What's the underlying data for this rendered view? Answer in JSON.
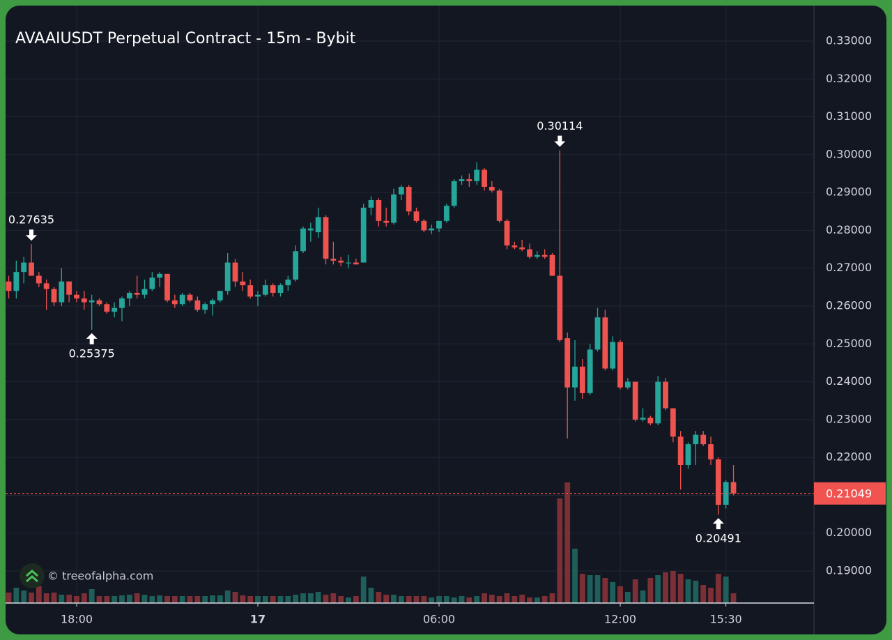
{
  "chart_data": {
    "type": "candlestick",
    "title": "AVAAIUSDT Perpetual Contract - 15m - Bybit",
    "watermark": "© treeofalpha.com",
    "x": [
      -8.25,
      -8,
      -7.75,
      -7.5,
      -7.25,
      -7,
      -6.75,
      -6.5,
      -6.25,
      -6,
      -5.75,
      -5.5,
      -5.25,
      -5,
      -4.75,
      -4.5,
      -4.25,
      -4,
      -3.75,
      -3.5,
      -3.25,
      -3,
      -2.75,
      -2.5,
      -2.25,
      -2,
      -1.75,
      -1.5,
      -1.25,
      -1,
      -0.75,
      -0.5,
      -0.25,
      0,
      0.25,
      0.5,
      0.75,
      1,
      1.25,
      1.5,
      1.75,
      2,
      2.25,
      2.5,
      2.75,
      3,
      3.25,
      3.5,
      3.75,
      4,
      4.25,
      4.5,
      4.75,
      5,
      5.25,
      5.5,
      5.75,
      6,
      6.25,
      6.5,
      6.75,
      7,
      7.25,
      7.5,
      7.75,
      8,
      8.25,
      8.5,
      8.75,
      9,
      9.25,
      9.5,
      9.75,
      10,
      10.25,
      10.5,
      10.75,
      11,
      11.25,
      11.5,
      11.75,
      12,
      12.25,
      12.5,
      12.75,
      13,
      13.25,
      13.5,
      13.75,
      14,
      14.25,
      14.5,
      14.75,
      15,
      15.25,
      15.5,
      15.75
    ],
    "open": [
      0.2665,
      0.264,
      0.269,
      0.2715,
      0.268,
      0.266,
      0.2645,
      0.261,
      0.2665,
      0.263,
      0.262,
      0.261,
      0.2615,
      0.2605,
      0.2585,
      0.2595,
      0.262,
      0.2635,
      0.263,
      0.2645,
      0.2675,
      0.2685,
      0.2615,
      0.2605,
      0.263,
      0.2615,
      0.259,
      0.2605,
      0.2615,
      0.264,
      0.2715,
      0.2665,
      0.2655,
      0.2625,
      0.263,
      0.2655,
      0.2635,
      0.2655,
      0.267,
      0.2745,
      0.28,
      0.2795,
      0.2835,
      0.2725,
      0.272,
      0.2715,
      0.2715,
      0.2715,
      0.286,
      0.288,
      0.2825,
      0.282,
      0.2895,
      0.2915,
      0.285,
      0.2825,
      0.28,
      0.2805,
      0.2825,
      0.2865,
      0.293,
      0.2935,
      0.293,
      0.296,
      0.2915,
      0.2905,
      0.2825,
      0.276,
      0.2755,
      0.275,
      0.273,
      0.2735,
      0.2735,
      0.268,
      0.2515,
      0.2385,
      0.244,
      0.237,
      0.2485,
      0.257,
      0.2435,
      0.2505,
      0.2385,
      0.24,
      0.23,
      0.2305,
      0.229,
      0.24,
      0.233,
      0.2255,
      0.218,
      0.2235,
      0.226,
      0.2235,
      0.2195,
      0.2075,
      0.2135
    ],
    "high": [
      0.268,
      0.272,
      0.273,
      0.27635,
      0.269,
      0.267,
      0.265,
      0.27,
      0.2665,
      0.264,
      0.264,
      0.263,
      0.262,
      0.261,
      0.261,
      0.2625,
      0.264,
      0.268,
      0.267,
      0.269,
      0.269,
      0.2685,
      0.263,
      0.2635,
      0.2635,
      0.2625,
      0.261,
      0.262,
      0.264,
      0.274,
      0.2725,
      0.269,
      0.267,
      0.264,
      0.267,
      0.266,
      0.266,
      0.268,
      0.276,
      0.281,
      0.282,
      0.286,
      0.284,
      0.277,
      0.273,
      0.2735,
      0.2725,
      0.287,
      0.289,
      0.2885,
      0.286,
      0.291,
      0.292,
      0.292,
      0.286,
      0.283,
      0.2815,
      0.2825,
      0.287,
      0.2935,
      0.2945,
      0.295,
      0.298,
      0.2965,
      0.293,
      0.291,
      0.283,
      0.277,
      0.2775,
      0.2765,
      0.2745,
      0.275,
      0.274,
      0.30114,
      0.253,
      0.251,
      0.246,
      0.25,
      0.2595,
      0.259,
      0.252,
      0.251,
      0.241,
      0.24,
      0.233,
      0.231,
      0.2415,
      0.241,
      0.233,
      0.227,
      0.224,
      0.227,
      0.227,
      0.2255,
      0.22,
      0.214,
      0.218
    ],
    "low": [
      0.262,
      0.262,
      0.266,
      0.268,
      0.265,
      0.259,
      0.26,
      0.26,
      0.261,
      0.261,
      0.259,
      0.25375,
      0.26,
      0.258,
      0.257,
      0.256,
      0.26,
      0.262,
      0.262,
      0.264,
      0.265,
      0.261,
      0.2595,
      0.26,
      0.261,
      0.2585,
      0.258,
      0.2575,
      0.261,
      0.263,
      0.265,
      0.264,
      0.262,
      0.26,
      0.2625,
      0.2625,
      0.2625,
      0.264,
      0.2665,
      0.274,
      0.277,
      0.278,
      0.271,
      0.271,
      0.2705,
      0.27,
      0.271,
      0.2715,
      0.284,
      0.281,
      0.281,
      0.2815,
      0.288,
      0.284,
      0.282,
      0.2795,
      0.279,
      0.2795,
      0.282,
      0.286,
      0.292,
      0.2915,
      0.292,
      0.2905,
      0.29,
      0.282,
      0.275,
      0.275,
      0.2745,
      0.2725,
      0.2725,
      0.2725,
      0.268,
      0.2505,
      0.225,
      0.235,
      0.2355,
      0.2365,
      0.248,
      0.243,
      0.243,
      0.238,
      0.238,
      0.2295,
      0.2295,
      0.2285,
      0.2285,
      0.2325,
      0.224,
      0.2115,
      0.217,
      0.218,
      0.223,
      0.218,
      0.20491,
      0.2065,
      0.21
    ],
    "close": [
      0.264,
      0.269,
      0.2715,
      0.268,
      0.266,
      0.2645,
      0.261,
      0.2665,
      0.263,
      0.262,
      0.261,
      0.2615,
      0.2605,
      0.2585,
      0.2595,
      0.262,
      0.2635,
      0.263,
      0.2645,
      0.2675,
      0.2685,
      0.2615,
      0.2605,
      0.263,
      0.2615,
      0.259,
      0.2605,
      0.2615,
      0.264,
      0.2715,
      0.2665,
      0.2655,
      0.2625,
      0.263,
      0.2655,
      0.2635,
      0.2655,
      0.267,
      0.2745,
      0.2805,
      0.2805,
      0.2835,
      0.2725,
      0.272,
      0.2715,
      0.2715,
      0.271,
      0.286,
      0.288,
      0.2825,
      0.282,
      0.2895,
      0.2915,
      0.285,
      0.2825,
      0.28,
      0.2805,
      0.2825,
      0.2865,
      0.293,
      0.2935,
      0.293,
      0.296,
      0.2915,
      0.2905,
      0.2825,
      0.276,
      0.2755,
      0.275,
      0.273,
      0.2735,
      0.273,
      0.268,
      0.251,
      0.2385,
      0.244,
      0.237,
      0.2485,
      0.257,
      0.2435,
      0.2505,
      0.2385,
      0.24,
      0.23,
      0.2305,
      0.229,
      0.24,
      0.233,
      0.2255,
      0.218,
      0.2235,
      0.226,
      0.2235,
      0.2195,
      0.2075,
      0.2135,
      0.21049
    ],
    "volume": [
      15,
      22,
      18,
      15,
      24,
      14,
      15,
      12,
      12,
      10,
      14,
      20,
      10,
      10,
      10,
      11,
      12,
      14,
      12,
      10,
      11,
      10,
      10,
      10,
      10,
      10,
      10,
      11,
      11,
      18,
      16,
      11,
      10,
      10,
      10,
      10,
      10,
      10,
      12,
      14,
      14,
      16,
      12,
      14,
      10,
      8,
      10,
      38,
      22,
      16,
      12,
      12,
      10,
      10,
      10,
      10,
      8,
      10,
      10,
      8,
      10,
      8,
      10,
      14,
      12,
      10,
      14,
      10,
      12,
      8,
      8,
      10,
      14,
      150,
      173,
      78,
      42,
      40,
      40,
      36,
      30,
      24,
      16,
      34,
      18,
      36,
      40,
      44,
      46,
      42,
      34,
      32,
      26,
      22,
      42,
      38,
      14
    ],
    "up_color": "#26a69a",
    "down_color": "#ef5350",
    "up_volume_color": "#1e5f5a",
    "down_volume_color": "#7c3036",
    "xlim": [
      -8.354,
      18.415
    ],
    "ylim": [
      0.18153,
      0.33939
    ],
    "xticks": [
      {
        "value": -6,
        "label": "18:00"
      },
      {
        "value": 0,
        "label": "17"
      },
      {
        "value": 6,
        "label": "06:00"
      },
      {
        "value": 12,
        "label": "12:00"
      },
      {
        "value": 15.5,
        "label": "15:30"
      }
    ],
    "yticks": [
      {
        "value": 0.19,
        "label": "0.19000"
      },
      {
        "value": 0.2,
        "label": "0.20000"
      },
      {
        "value": 0.21,
        "label": "0.21000"
      },
      {
        "value": 0.22,
        "label": "0.22000"
      },
      {
        "value": 0.23,
        "label": "0.23000"
      },
      {
        "value": 0.24,
        "label": "0.24000"
      },
      {
        "value": 0.25,
        "label": "0.25000"
      },
      {
        "value": 0.26,
        "label": "0.26000"
      },
      {
        "value": 0.27,
        "label": "0.27000"
      },
      {
        "value": 0.28,
        "label": "0.28000"
      },
      {
        "value": 0.29,
        "label": "0.29000"
      },
      {
        "value": 0.3,
        "label": "0.30000"
      },
      {
        "value": 0.31,
        "label": "0.31000"
      },
      {
        "value": 0.32,
        "label": "0.32000"
      },
      {
        "value": 0.33,
        "label": "0.33000"
      }
    ],
    "grid": true,
    "markers": [
      {
        "x": -7.5,
        "value": 0.27635,
        "direction": "down"
      },
      {
        "x": -5.5,
        "value": 0.25375,
        "direction": "up"
      },
      {
        "x": 10,
        "value": 0.30114,
        "direction": "down"
      },
      {
        "x": 15.25,
        "value": 0.20491,
        "direction": "up"
      }
    ],
    "last_price": 0.21049,
    "last_price_color": "#f05350"
  }
}
